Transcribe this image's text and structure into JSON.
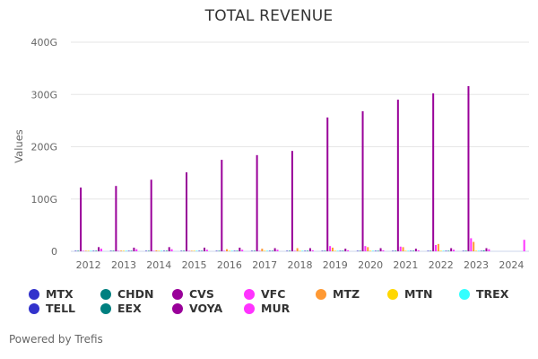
{
  "footer": "Powered by Trefis",
  "chart_data": {
    "type": "bar",
    "title": "TOTAL REVENUE",
    "xlabel": "",
    "ylabel": "Values",
    "ylim": [
      0,
      400
    ],
    "y_unit": "G",
    "yticks": [
      0,
      100,
      200,
      300,
      400
    ],
    "ytick_labels": [
      "0",
      "100G",
      "200G",
      "300G",
      "400G"
    ],
    "grid": true,
    "legend_position": "bottom",
    "categories": [
      "2012",
      "2013",
      "2014",
      "2015",
      "2016",
      "2017",
      "2018",
      "2019",
      "2020",
      "2021",
      "2022",
      "2023",
      "2024"
    ],
    "series": [
      {
        "name": "MTX",
        "color": "#3333cc",
        "values": [
          0.5,
          0.5,
          0.5,
          0.5,
          0.5,
          0.6,
          0.6,
          0.6,
          0.6,
          0.6,
          0.6,
          0.6,
          null
        ]
      },
      {
        "name": "CHDN",
        "color": "#008080",
        "values": [
          0.2,
          0.2,
          0.2,
          0.2,
          0.2,
          0.2,
          0.2,
          0.2,
          0.3,
          0.3,
          0.3,
          0.3,
          null
        ]
      },
      {
        "name": "CVS",
        "color": "#990099",
        "values": [
          122,
          125,
          137,
          151,
          175,
          184,
          192,
          256,
          268,
          290,
          302,
          316,
          null
        ]
      },
      {
        "name": "VFC",
        "color": "#ff33ff",
        "values": [
          0.5,
          0.5,
          0.5,
          0.5,
          0.6,
          0.6,
          0.6,
          10,
          10,
          9,
          12,
          25,
          null
        ]
      },
      {
        "name": "MTZ",
        "color": "#ff9933",
        "values": [
          1,
          1.3,
          1.7,
          1,
          4,
          5,
          6,
          7,
          8,
          8,
          14,
          18,
          null
        ]
      },
      {
        "name": "MTN",
        "color": "#ffd700",
        "values": [
          0.2,
          0.2,
          0.2,
          0.2,
          0.2,
          0.2,
          0.2,
          0.3,
          0.3,
          0.3,
          0.3,
          0.3,
          null
        ]
      },
      {
        "name": "TREX",
        "color": "#33ffff",
        "values": [
          0.2,
          0.2,
          0.2,
          0.2,
          0.2,
          0.2,
          0.2,
          0.2,
          0.3,
          0.3,
          0.3,
          0.3,
          null
        ]
      },
      {
        "name": "TELL",
        "color": "#3333cc",
        "values": [
          0.1,
          0.1,
          0.1,
          0.1,
          0.1,
          0.1,
          0.1,
          0.1,
          0.1,
          0.1,
          0.1,
          0.1,
          null
        ]
      },
      {
        "name": "EEX",
        "color": "#008080",
        "values": [
          0.1,
          0.1,
          0.1,
          0.1,
          0.1,
          0.1,
          0.1,
          0.1,
          0.1,
          0.1,
          0.1,
          1.5,
          null
        ]
      },
      {
        "name": "VOYA",
        "color": "#990099",
        "values": [
          8,
          7,
          8,
          7,
          7,
          6,
          6,
          5,
          6,
          5,
          6,
          6,
          null
        ]
      },
      {
        "name": "MUR",
        "color": "#ff33ff",
        "values": [
          5,
          4,
          4,
          3,
          3,
          3,
          2,
          2,
          2,
          2,
          3,
          4,
          22
        ]
      }
    ]
  },
  "legend": [
    {
      "label": "MTX",
      "color": "#3333cc"
    },
    {
      "label": "CHDN",
      "color": "#008080"
    },
    {
      "label": "CVS",
      "color": "#990099"
    },
    {
      "label": "VFC",
      "color": "#ff33ff"
    },
    {
      "label": "MTZ",
      "color": "#ff9933"
    },
    {
      "label": "MTN",
      "color": "#ffd700"
    },
    {
      "label": "TREX",
      "color": "#33ffff"
    },
    {
      "label": "TELL",
      "color": "#3333cc"
    },
    {
      "label": "EEX",
      "color": "#008080"
    },
    {
      "label": "VOYA",
      "color": "#990099"
    },
    {
      "label": "MUR",
      "color": "#ff33ff"
    }
  ]
}
